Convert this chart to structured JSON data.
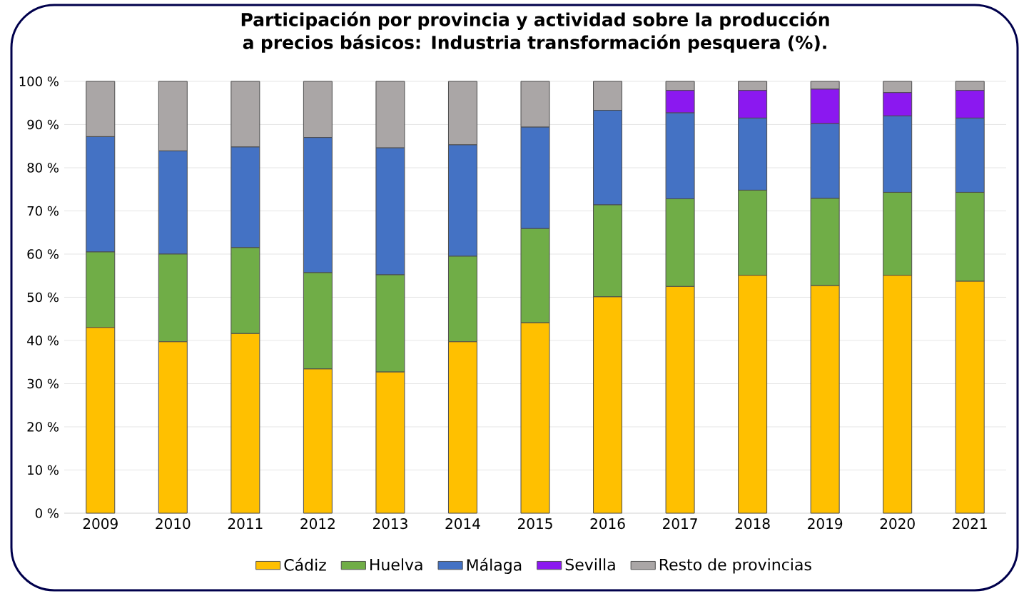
{
  "chart_data": {
    "type": "bar",
    "stacked": true,
    "title": "Participación por provincia y actividad sobre la producción a precios básicos: Industria transformación pesquera (%).",
    "categories": [
      "2009",
      "2010",
      "2011",
      "2012",
      "2013",
      "2014",
      "2015",
      "2016",
      "2017",
      "2018",
      "2019",
      "2020",
      "2021"
    ],
    "series": [
      {
        "name": "Cádiz",
        "color": "#ffc000",
        "values": [
          43,
          39.7,
          41.6,
          33.4,
          32.7,
          39.7,
          44.1,
          50.1,
          52.5,
          55.1,
          52.7,
          55.1,
          53.7
        ]
      },
      {
        "name": "Huelva",
        "color": "#70ad47",
        "values": [
          17.5,
          20.3,
          19.9,
          22.3,
          22.5,
          19.8,
          21.8,
          21.3,
          20.3,
          19.7,
          20.2,
          19.2,
          20.6
        ]
      },
      {
        "name": "Málaga",
        "color": "#4472c4",
        "values": [
          26.7,
          23.9,
          23.3,
          31.3,
          29.4,
          25.8,
          23.5,
          21.9,
          19.9,
          16.7,
          17.3,
          17.7,
          17.2
        ]
      },
      {
        "name": "Sevilla",
        "color": "#8b18f0",
        "values": [
          0,
          0,
          0,
          0,
          0,
          0,
          0,
          0,
          5.2,
          6.4,
          8,
          5.4,
          6.4
        ]
      },
      {
        "name": "Resto de provincias",
        "color": "#aaa6a6",
        "values": [
          12.8,
          16.1,
          15.2,
          13,
          15.4,
          14.7,
          10.6,
          6.7,
          2.1,
          2.1,
          1.8,
          2.6,
          2.1
        ]
      }
    ],
    "ylim": [
      0,
      100
    ],
    "yticks": [
      {
        "value": 0,
        "label": "0 %"
      },
      {
        "value": 10,
        "label": "10 %"
      },
      {
        "value": 20,
        "label": "20 %"
      },
      {
        "value": 30,
        "label": "30 %"
      },
      {
        "value": 40,
        "label": "40 %"
      },
      {
        "value": 50,
        "label": "50 %"
      },
      {
        "value": 60,
        "label": "60 %"
      },
      {
        "value": 70,
        "label": "70 %"
      },
      {
        "value": 80,
        "label": "80 %"
      },
      {
        "value": 90,
        "label": "90 %"
      },
      {
        "value": 100,
        "label": "100 %"
      }
    ],
    "grid": "y",
    "legend": "bottom"
  }
}
